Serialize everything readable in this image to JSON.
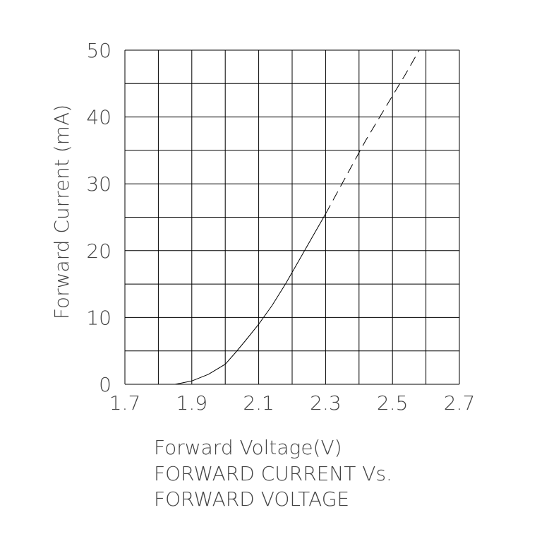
{
  "chart_data": {
    "type": "line",
    "title_lines": [
      "FORWARD  CURRENT  Vs.",
      "FORWARD  VOLTAGE"
    ],
    "xlabel": "Forward  Voltage(V)",
    "ylabel": "Forward  Current  (mA)",
    "xlim": [
      1.7,
      2.7
    ],
    "ylim": [
      0,
      50
    ],
    "x_ticks": [
      1.7,
      1.9,
      2.1,
      2.3,
      2.5,
      2.7
    ],
    "x_tick_labels": [
      "1.7",
      "1.9",
      "2.1",
      "2.3",
      "2.5",
      "2.7"
    ],
    "y_ticks": [
      0,
      10,
      20,
      30,
      40,
      50
    ],
    "y_tick_labels": [
      "0",
      "10",
      "20",
      "30",
      "40",
      "50"
    ],
    "x_grid_step": 0.1,
    "y_grid_step": 5,
    "grid": true,
    "series": [
      {
        "style": "solid",
        "x": [
          1.85,
          1.9,
          1.95,
          2.0,
          2.03,
          2.06,
          2.1,
          2.14,
          2.18,
          2.22,
          2.26,
          2.3
        ],
        "y": [
          0,
          0.5,
          1.5,
          3.0,
          4.7,
          6.5,
          9.0,
          11.8,
          15.0,
          18.5,
          22.0,
          25.5
        ]
      },
      {
        "style": "dashed",
        "x": [
          2.3,
          2.36,
          2.42,
          2.48,
          2.54,
          2.58
        ],
        "y": [
          25.5,
          31.0,
          36.5,
          41.5,
          46.5,
          50.0
        ]
      }
    ]
  }
}
